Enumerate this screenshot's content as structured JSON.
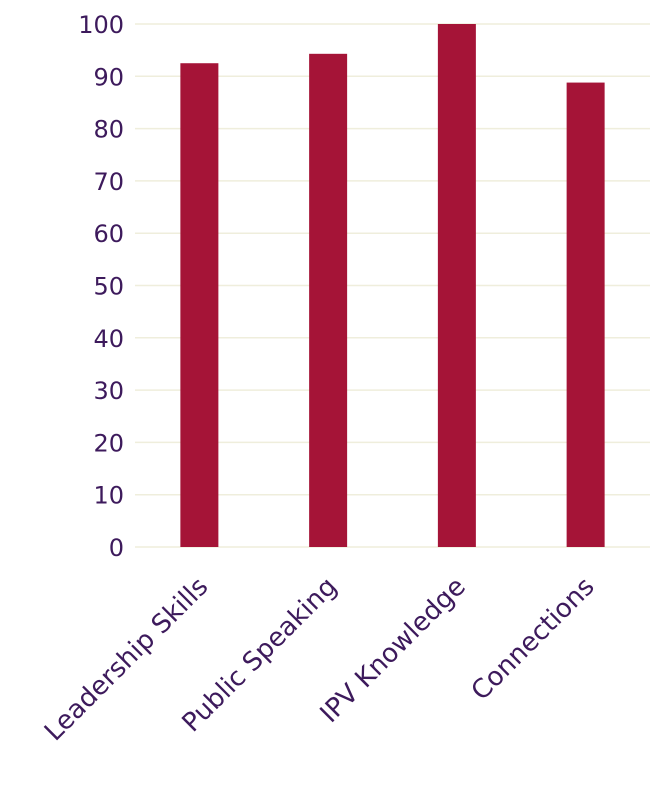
{
  "chart_data": {
    "type": "bar",
    "categories": [
      "Leadership Skills",
      "Public Speaking",
      "IPV Knowledge",
      "Connections"
    ],
    "values": [
      92.5,
      94.3,
      100,
      88.8
    ],
    "yticks": [
      0,
      10,
      20,
      30,
      40,
      50,
      60,
      70,
      80,
      90,
      100
    ],
    "ylim": [
      0,
      100
    ],
    "grid": true,
    "legend": "none"
  },
  "colors": {
    "bar": "#A51437",
    "text": "#3D1A5C",
    "grid": "#EFEEDC"
  }
}
